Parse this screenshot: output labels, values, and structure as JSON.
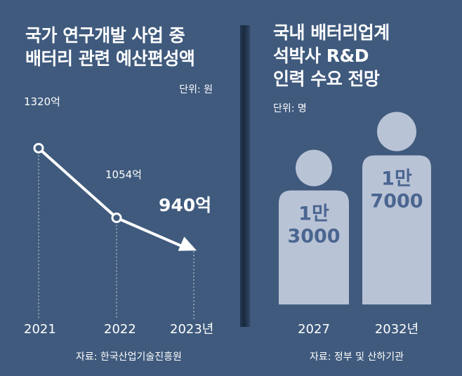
{
  "chart_data": [
    {
      "type": "line",
      "title": "국가 연구개발 사업 중\n배터리 관련 예산편성액",
      "unit": "단위: 원",
      "categories": [
        "2021",
        "2022",
        "2023년"
      ],
      "values": [
        1320,
        1054,
        940
      ],
      "value_labels": [
        "1320억",
        "1054억",
        "940억"
      ],
      "source": "자료: 한국산업기술진흥원",
      "ylim": [
        900,
        1350
      ]
    },
    {
      "type": "bar",
      "title": "국내 배터리업계\n석박사 R&D\n인력 수요 전망",
      "unit": "단위: 명",
      "categories": [
        "2027",
        "2032년"
      ],
      "values": [
        13000,
        17000
      ],
      "value_labels": [
        "1만\n3000",
        "1만\n7000"
      ],
      "source": "자료: 정부 및 산하기관",
      "ylim": [
        0,
        20000
      ]
    }
  ],
  "colors": {
    "background": "#3f5a7d",
    "figure": "#b9c3d6",
    "figure_text": "#4a6590",
    "line": "#ffffff"
  }
}
